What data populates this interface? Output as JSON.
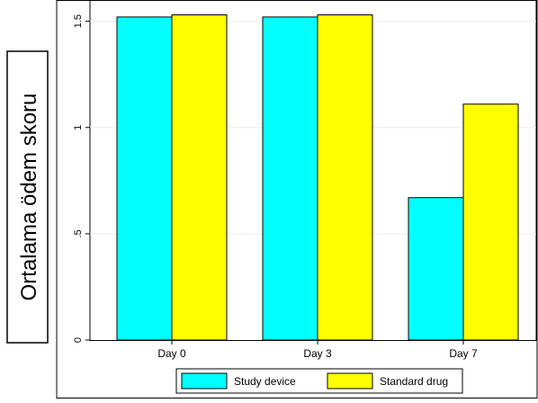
{
  "chart_data": {
    "type": "bar",
    "categories": [
      "Day 0",
      "Day 3",
      "Day 7"
    ],
    "series": [
      {
        "name": "Study device",
        "values": [
          1.52,
          1.52,
          0.67
        ],
        "color": "#00FFFF"
      },
      {
        "name": "Standard drug",
        "values": [
          1.53,
          1.53,
          1.11
        ],
        "color": "#FFFF00"
      }
    ],
    "ylabel": "Ortalama ödem skoru",
    "ylim": [
      0,
      1.6
    ],
    "yticks": [
      0,
      0.5,
      1,
      1.5
    ],
    "ytick_labels": [
      "0",
      ".5",
      "1",
      "1.5"
    ],
    "grid": true,
    "legend_position": "bottom"
  }
}
